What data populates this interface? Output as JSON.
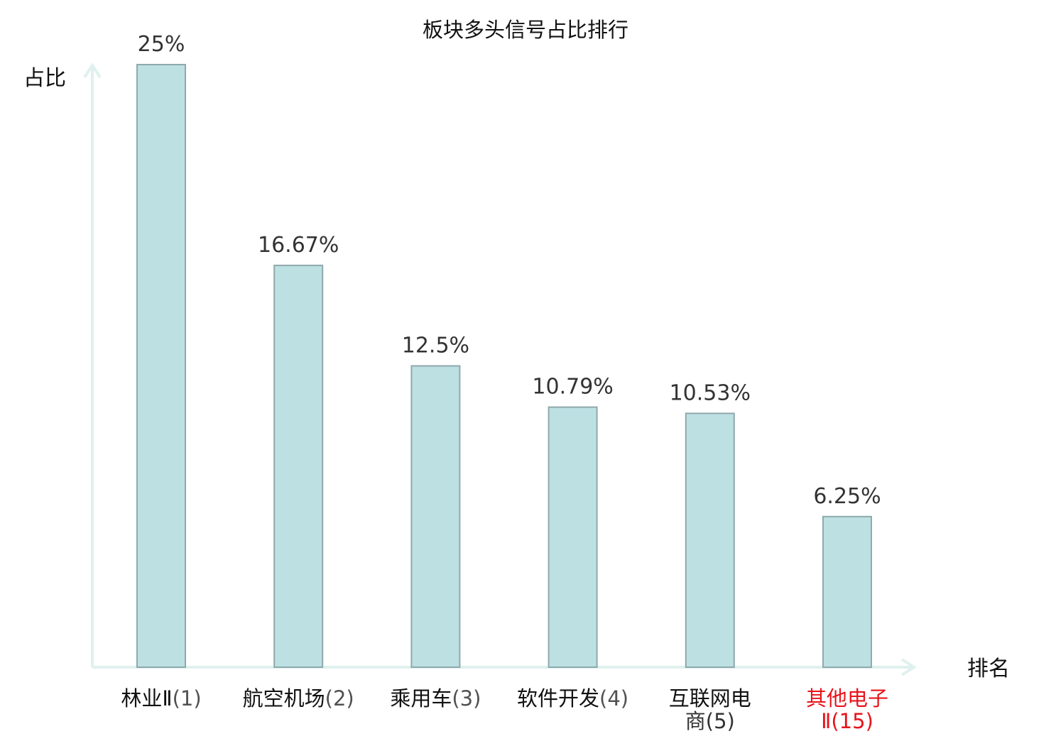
{
  "chart_data": {
    "type": "bar",
    "title": "板块多头信号占比排行",
    "ylabel": "占比",
    "xlabel": "排名",
    "categories": [
      {
        "name": "林业Ⅱ",
        "rank": "(1)"
      },
      {
        "name": "航空机场",
        "rank": "(2)"
      },
      {
        "name": "乘用车",
        "rank": "(3)"
      },
      {
        "name": "软件开发",
        "rank": "(4)"
      },
      {
        "name": "互联网电商",
        "rank": "(5)"
      },
      {
        "name": "其他电子Ⅱ",
        "rank": "(15)",
        "highlight": true
      }
    ],
    "values": [
      25,
      16.67,
      12.5,
      10.79,
      10.53,
      6.25
    ],
    "value_labels": [
      "25%",
      "16.67%",
      "12.5%",
      "10.79%",
      "10.53%",
      "6.25%"
    ],
    "ylim": [
      0,
      25
    ],
    "grid": false,
    "legend": "none",
    "colors": {
      "bar_fill": "#bde0e3",
      "bar_stroke": "#8fa9ac",
      "axis": "#dff1ee",
      "text": "#333333",
      "highlight_text": "#e8141b",
      "title_text": "#111111"
    }
  }
}
